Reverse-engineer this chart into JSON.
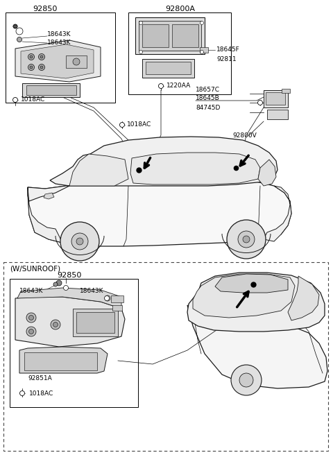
{
  "bg_color": "#ffffff",
  "line_color": "#1a1a1a",
  "fig_width": 4.8,
  "fig_height": 6.56,
  "dpi": 100,
  "labels": {
    "box1_title": "92850",
    "box2_title": "92800A",
    "lbl_18643K_1": "18643K",
    "lbl_18643K_2": "18643K",
    "lbl_1018AC_top": "1018AC",
    "lbl_1018AC_bot": "1018AC",
    "lbl_18645F": "18645F",
    "lbl_92811": "92811",
    "lbl_1220AA": "1220AA",
    "lbl_18657C": "18657C",
    "lbl_18645B": "18645B",
    "lbl_84745D": "84745D",
    "lbl_92800V": "92800V",
    "sunroof_label": "(W/SUNROOF)",
    "box3_title": "92850",
    "lbl_18643K_3": "18643K",
    "lbl_18643K_4": "18643K",
    "lbl_92851A": "92851A",
    "lbl_1018AC_3": "1018AC"
  }
}
